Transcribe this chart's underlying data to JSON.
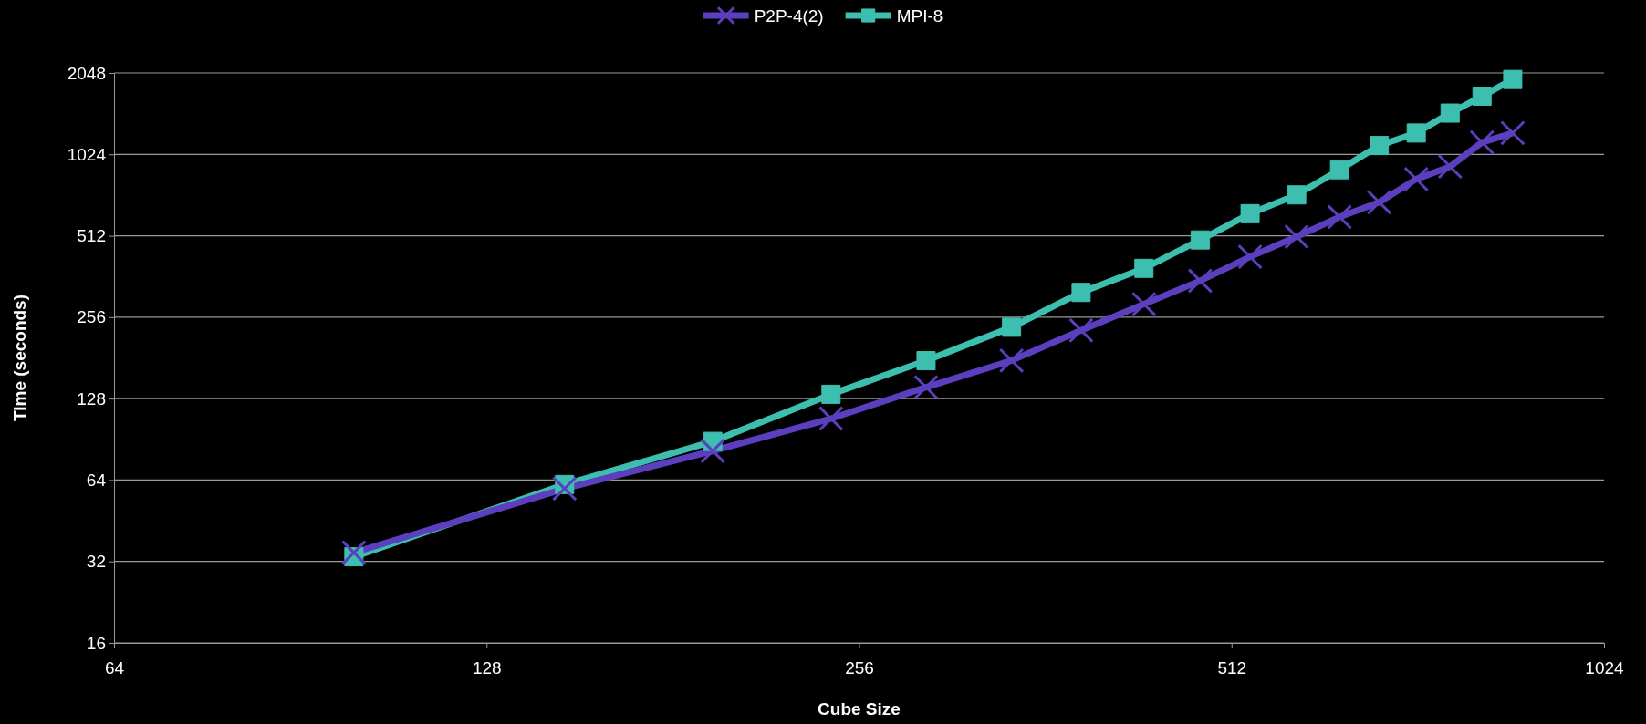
{
  "chart_data": {
    "type": "line",
    "xlabel": "Cube Size",
    "ylabel": "Time (seconds)",
    "log": "xy",
    "x": [
      100,
      148,
      195,
      243,
      290,
      340,
      387,
      435,
      483,
      530,
      578,
      626,
      674,
      722,
      769,
      816,
      864
    ],
    "xlim": [
      64,
      1024
    ],
    "xticks": [
      64,
      128,
      256,
      512,
      1024
    ],
    "ylim": [
      16,
      2048
    ],
    "yticks": [
      16,
      32,
      64,
      128,
      256,
      512,
      1024,
      2048
    ],
    "grid": "y",
    "legend": "top",
    "series": [
      {
        "name": "P2P-4(2)",
        "color": "#5b3fbf",
        "marker": "cross",
        "values": [
          34.5,
          59.5,
          82,
          108,
          141,
          177,
          229,
          286,
          349,
          428,
          508,
          601,
          681,
          830,
          923,
          1134,
          1228
        ]
      },
      {
        "name": "MPI-8",
        "color": "#3dbfb0",
        "marker": "square",
        "values": [
          33.3,
          61.6,
          88.9,
          132.8,
          176.8,
          235,
          316,
          388,
          494,
          618,
          725,
          898,
          1104,
          1228,
          1455,
          1680,
          1937
        ]
      }
    ]
  }
}
